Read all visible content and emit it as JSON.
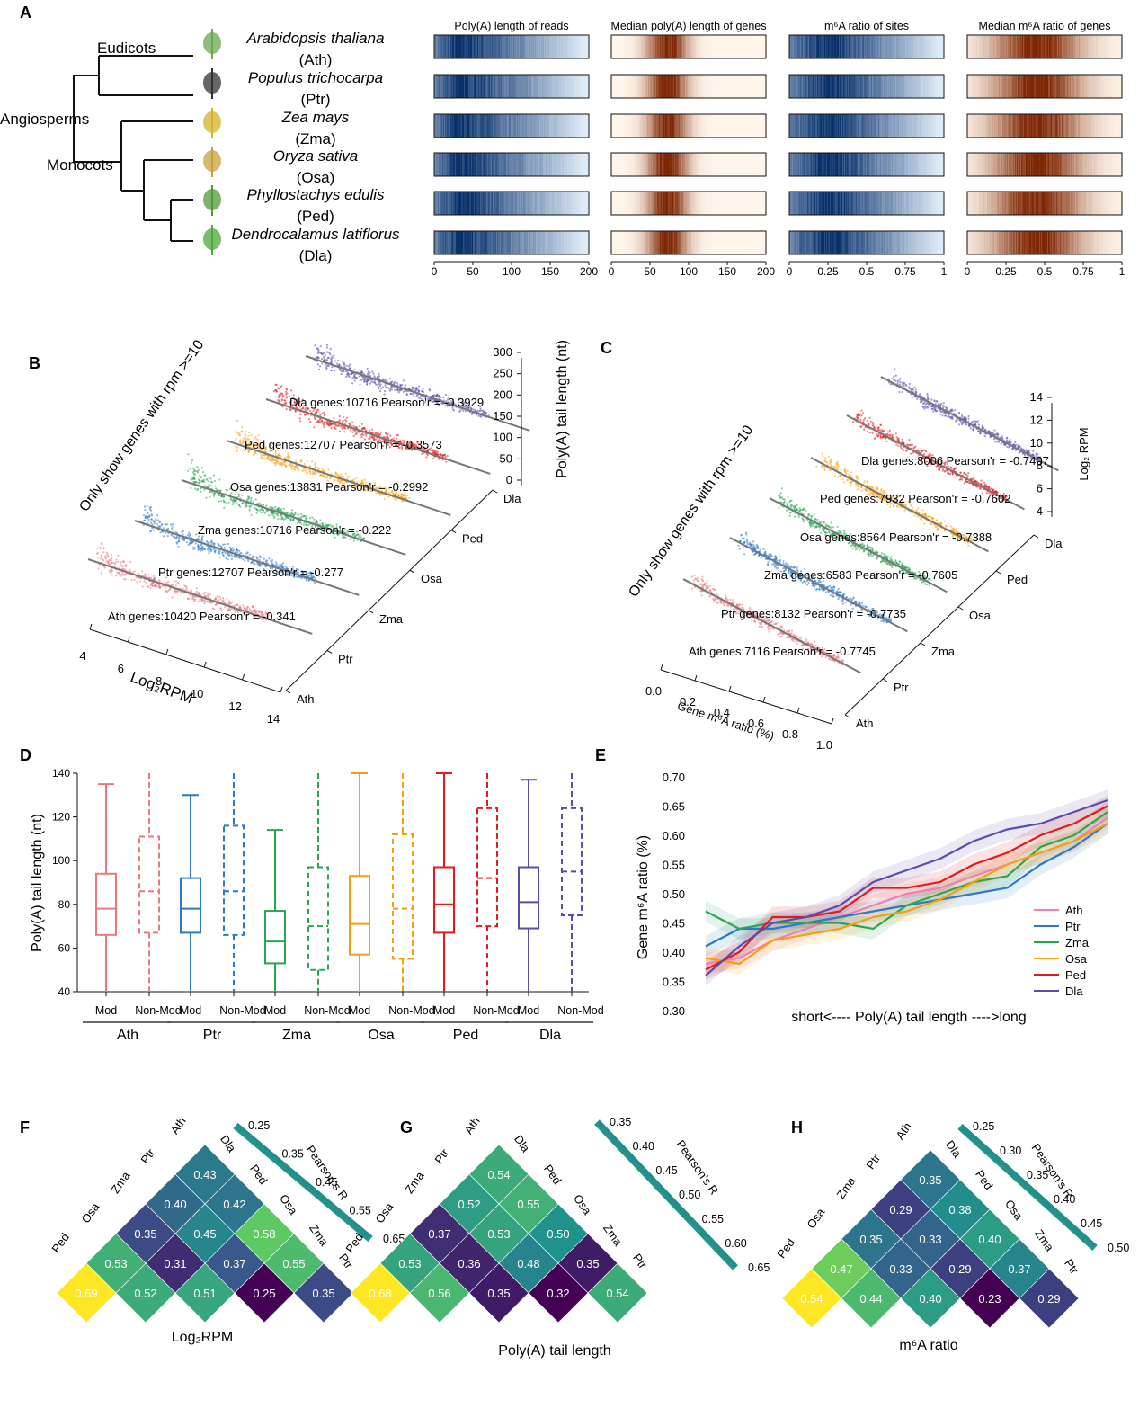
{
  "panel_letters": {
    "A": "A",
    "B": "B",
    "C": "C",
    "D": "D",
    "E": "E",
    "F": "F",
    "G": "G",
    "H": "H"
  },
  "panelA": {
    "clades": {
      "eudicots": "Eudicots",
      "angiosperms": "Angiosperms",
      "monocots": "Monocots"
    },
    "species": [
      {
        "name": "Arabidopsis thaliana",
        "abbr": "(Ath)"
      },
      {
        "name": "Populus trichocarpa",
        "abbr": "(Ptr)"
      },
      {
        "name": "Zea mays",
        "abbr": "(Zma)"
      },
      {
        "name": "Oryza sativa",
        "abbr": "(Osa)"
      },
      {
        "name": "Phyllostachys edulis",
        "abbr": "(Ped)"
      },
      {
        "name": "Dendrocalamus latiflorus",
        "abbr": "(Dla)"
      }
    ],
    "heatmaps": [
      {
        "title": "Poly(A) length of reads",
        "color": "blue",
        "ticks": [
          "0",
          "50",
          "100",
          "150",
          "200"
        ],
        "peak": 0.16
      },
      {
        "title": "Median poly(A) length of genes",
        "color": "orange",
        "ticks": [
          "0",
          "50",
          "100",
          "150",
          "200"
        ],
        "peak": 0.36
      },
      {
        "title": "m⁶A ratio of sites",
        "color": "blue",
        "ticks": [
          "0",
          "0.25",
          "0.5",
          "0.75",
          "1"
        ],
        "peak": 0.25
      },
      {
        "title": "Median m⁶A ratio of genes",
        "color": "orange",
        "ticks": [
          "0",
          "0.25",
          "0.5",
          "0.75",
          "1"
        ],
        "peak": 0.45
      }
    ]
  },
  "panelB": {
    "rotated_title": "Only show genes with rpm >=10",
    "zlabel": "Poly(A) tail length (nt)",
    "zticks": [
      "0",
      "50",
      "100",
      "150",
      "200",
      "250",
      "300"
    ],
    "xlabel": "Log₂RPM",
    "xticks": [
      "4",
      "6",
      "8",
      "10",
      "12",
      "14"
    ],
    "species_axis": [
      "Ath",
      "Ptr",
      "Zma",
      "Osa",
      "Ped",
      "Dla"
    ],
    "labels": [
      "Ath genes:10420 Pearson'r = -0.341",
      "Ptr genes:12707 Pearson'r = -0.277",
      "Zma genes:10716 Pearson'r = -0.222",
      "Osa genes:13831 Pearson'r = -0.2992",
      "Ped genes:12707 Pearson'r = -0.3573",
      "Dla genes:10716 Pearson'r = -0.3929"
    ]
  },
  "panelC": {
    "rotated_title": "Only show genes with rpm >=10",
    "zlabel": "Log₂ RPM",
    "zticks": [
      "4",
      "6",
      "8",
      "10",
      "12",
      "14"
    ],
    "xlabel": "Gene m⁶A ratio (%)",
    "xticks": [
      "0.0",
      "0.2",
      "0.4",
      "0.6",
      "0.8",
      "1.0"
    ],
    "species_axis": [
      "Ath",
      "Ptr",
      "Zma",
      "Osa",
      "Ped",
      "Dla"
    ],
    "labels": [
      "Ath genes:7116 Pearson'r = -0.7745",
      "Ptr genes:8132 Pearson'r = -0.7735",
      "Zma genes:6583 Pearson'r = -0.7605",
      "Osa genes:8564 Pearson'r = -0.7388",
      "Ped genes:7932 Pearson'r = -0.7602",
      "Dla genes:8006 Pearson'r = -0.7407"
    ]
  },
  "species_colors": {
    "Ath": "#e8797c",
    "Ptr": "#2b7ac7",
    "Zma": "#2aa552",
    "Osa": "#f4a012",
    "Ped": "#e31a1c",
    "Dla": "#5b4bab"
  },
  "chart_data": [
    {
      "type": "box",
      "panel": "D",
      "ylabel": "Poly(A) tail length (nt)",
      "ylim": [
        40,
        140
      ],
      "yticks": [
        "40",
        "60",
        "80",
        "100",
        "120",
        "140"
      ],
      "groups": [
        "Ath",
        "Ptr",
        "Zma",
        "Osa",
        "Ped",
        "Dla"
      ],
      "categories": [
        "Mod",
        "Non-Mod"
      ],
      "boxes": [
        {
          "group": "Ath",
          "cat": "Mod",
          "min": 40,
          "q1": 66,
          "median": 78,
          "q3": 94,
          "max": 135
        },
        {
          "group": "Ath",
          "cat": "Non-Mod",
          "min": 40,
          "q1": 67,
          "median": 86,
          "q3": 111,
          "max": 140
        },
        {
          "group": "Ptr",
          "cat": "Mod",
          "min": 40,
          "q1": 67,
          "median": 78,
          "q3": 92,
          "max": 130
        },
        {
          "group": "Ptr",
          "cat": "Non-Mod",
          "min": 40,
          "q1": 66,
          "median": 86,
          "q3": 116,
          "max": 140
        },
        {
          "group": "Zma",
          "cat": "Mod",
          "min": 40,
          "q1": 53,
          "median": 63,
          "q3": 77,
          "max": 114
        },
        {
          "group": "Zma",
          "cat": "Non-Mod",
          "min": 40,
          "q1": 50,
          "median": 70,
          "q3": 97,
          "max": 140
        },
        {
          "group": "Osa",
          "cat": "Mod",
          "min": 40,
          "q1": 57,
          "median": 71,
          "q3": 93,
          "max": 140
        },
        {
          "group": "Osa",
          "cat": "Non-Mod",
          "min": 40,
          "q1": 55,
          "median": 78,
          "q3": 112,
          "max": 140
        },
        {
          "group": "Ped",
          "cat": "Mod",
          "min": 40,
          "q1": 67,
          "median": 80,
          "q3": 97,
          "max": 140
        },
        {
          "group": "Ped",
          "cat": "Non-Mod",
          "min": 40,
          "q1": 70,
          "median": 92,
          "q3": 124,
          "max": 140
        },
        {
          "group": "Dla",
          "cat": "Mod",
          "min": 40,
          "q1": 69,
          "median": 81,
          "q3": 97,
          "max": 137
        },
        {
          "group": "Dla",
          "cat": "Non-Mod",
          "min": 40,
          "q1": 75,
          "median": 95,
          "q3": 124,
          "max": 140
        }
      ]
    },
    {
      "type": "line",
      "panel": "E",
      "ylabel": "Gene m⁶A ratio (%)",
      "xlabel": "short<---- Poly(A) tail length ---->long",
      "ylim": [
        0.3,
        0.7
      ],
      "yticks": [
        "0.30",
        "0.35",
        "0.40",
        "0.45",
        "0.50",
        "0.55",
        "0.60",
        "0.65",
        "0.70"
      ],
      "x": [
        1,
        2,
        3,
        4,
        5,
        6,
        7,
        8,
        9,
        10,
        11,
        12,
        13
      ],
      "series": [
        {
          "name": "Ath",
          "values": [
            0.38,
            0.39,
            0.42,
            0.44,
            0.46,
            0.48,
            0.5,
            0.51,
            0.53,
            0.55,
            0.57,
            0.59,
            0.63
          ]
        },
        {
          "name": "Ptr",
          "values": [
            0.41,
            0.44,
            0.44,
            0.45,
            0.46,
            0.47,
            0.48,
            0.49,
            0.5,
            0.51,
            0.55,
            0.58,
            0.62
          ]
        },
        {
          "name": "Zma",
          "values": [
            0.47,
            0.44,
            0.45,
            0.45,
            0.45,
            0.44,
            0.48,
            0.5,
            0.52,
            0.53,
            0.58,
            0.6,
            0.64
          ]
        },
        {
          "name": "Osa",
          "values": [
            0.39,
            0.38,
            0.42,
            0.43,
            0.44,
            0.46,
            0.47,
            0.49,
            0.52,
            0.55,
            0.57,
            0.59,
            0.62
          ]
        },
        {
          "name": "Ped",
          "values": [
            0.37,
            0.4,
            0.46,
            0.46,
            0.47,
            0.51,
            0.51,
            0.52,
            0.55,
            0.57,
            0.6,
            0.62,
            0.65
          ]
        },
        {
          "name": "Dla",
          "values": [
            0.36,
            0.41,
            0.45,
            0.46,
            0.48,
            0.52,
            0.54,
            0.56,
            0.59,
            0.61,
            0.62,
            0.64,
            0.66
          ]
        }
      ]
    },
    {
      "type": "heatmap",
      "panel": "F",
      "title": "Log₂RPM",
      "legend_title": "Pearson's R",
      "legend_ticks": [
        "0.25",
        "0.35",
        "0.45",
        "0.55",
        "0.65"
      ],
      "legend_range": [
        0.25,
        0.69
      ],
      "rows": [
        "Ath",
        "Ptr",
        "Zma",
        "Osa",
        "Ped"
      ],
      "cols": [
        "Dla",
        "Ped",
        "Osa",
        "Zma",
        "Ptr"
      ],
      "values": [
        [
          0.43,
          0.42,
          0.58,
          0.55,
          0.35
        ],
        [
          0.4,
          0.45,
          0.37,
          0.25
        ],
        [
          0.35,
          0.31,
          0.51
        ],
        [
          0.53,
          0.52
        ],
        [
          0.69
        ]
      ]
    },
    {
      "type": "heatmap",
      "panel": "G",
      "title": "Poly(A) tail length",
      "legend_title": "Pearson's R",
      "legend_ticks": [
        "0.35",
        "0.40",
        "0.45",
        "0.50",
        "0.55",
        "0.60",
        "0.65"
      ],
      "legend_range": [
        0.32,
        0.68
      ],
      "rows": [
        "Ath",
        "Ptr",
        "Zma",
        "Osa",
        "Ped"
      ],
      "cols": [
        "Dla",
        "Ped",
        "Osa",
        "Zma",
        "Ptr"
      ],
      "values": [
        [
          0.54,
          0.55,
          0.5,
          0.35,
          0.54
        ],
        [
          0.52,
          0.53,
          0.48,
          0.32
        ],
        [
          0.37,
          0.36,
          0.35
        ],
        [
          0.53,
          0.56
        ],
        [
          0.68
        ]
      ]
    },
    {
      "type": "heatmap",
      "panel": "H",
      "title": "m⁶A ratio",
      "legend_title": "Pearson's R",
      "legend_ticks": [
        "0.25",
        "0.30",
        "0.35",
        "0.40",
        "0.45",
        "0.50"
      ],
      "legend_range": [
        0.23,
        0.54
      ],
      "rows": [
        "Ath",
        "Ptr",
        "Zma",
        "Osa",
        "Ped"
      ],
      "cols": [
        "Dla",
        "Ped",
        "Osa",
        "Zma",
        "Ptr"
      ],
      "values": [
        [
          0.35,
          0.38,
          0.4,
          0.37,
          0.29
        ],
        [
          0.29,
          0.33,
          0.29,
          0.23
        ],
        [
          0.35,
          0.33,
          0.4
        ],
        [
          0.47,
          0.44
        ],
        [
          0.54
        ]
      ]
    }
  ]
}
